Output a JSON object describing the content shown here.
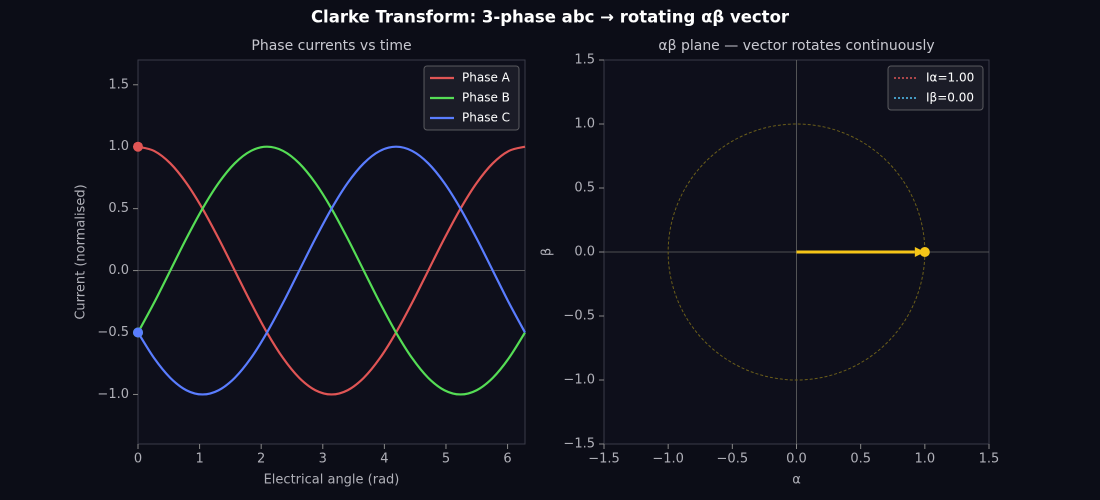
{
  "title": "Clarke Transform: 3-phase abc → rotating αβ vector",
  "chart_data": [
    {
      "type": "line",
      "title": "Phase currents vs time",
      "xlabel": "Electrical angle (rad)",
      "ylabel": "Current (normalised)",
      "x": [
        0,
        0.262,
        0.524,
        0.785,
        1.047,
        1.309,
        1.571,
        1.833,
        2.094,
        2.356,
        2.618,
        2.88,
        3.142,
        3.403,
        3.665,
        3.927,
        4.189,
        4.451,
        4.712,
        4.974,
        5.236,
        5.498,
        5.76,
        6.021,
        6.283
      ],
      "series": [
        {
          "name": "Phase A",
          "color": "#e05555",
          "values": [
            1,
            0.966,
            0.866,
            0.707,
            0.5,
            0.259,
            0,
            -0.259,
            -0.5,
            -0.707,
            -0.866,
            -0.966,
            -1,
            -0.966,
            -0.866,
            -0.707,
            -0.5,
            -0.259,
            0,
            0.259,
            0.5,
            0.707,
            0.866,
            0.966,
            1
          ]
        },
        {
          "name": "Phase B",
          "color": "#55dd55",
          "values": [
            -0.5,
            -0.259,
            0,
            0.259,
            0.5,
            0.707,
            0.866,
            0.966,
            1,
            0.966,
            0.866,
            0.707,
            0.5,
            0.259,
            0,
            -0.259,
            -0.5,
            -0.707,
            -0.866,
            -0.966,
            -1,
            -0.966,
            -0.866,
            -0.707,
            -0.5
          ]
        },
        {
          "name": "Phase C",
          "color": "#5a7dff",
          "values": [
            -0.5,
            -0.707,
            -0.866,
            -0.966,
            -1,
            -0.966,
            -0.866,
            -0.707,
            -0.5,
            -0.259,
            0,
            0.259,
            0.5,
            0.707,
            0.866,
            0.966,
            1,
            0.966,
            0.866,
            0.707,
            0.5,
            0.259,
            0,
            -0.259,
            -0.5
          ]
        }
      ],
      "xlim": [
        0,
        6.283
      ],
      "ylim": [
        -1.4,
        1.7
      ],
      "xticks": [
        0,
        1,
        2,
        3,
        4,
        5,
        6
      ],
      "yticks": [
        {
          "value": -1,
          "label": "−1.0"
        },
        {
          "value": -0.5,
          "label": "−0.5"
        },
        {
          "value": 0,
          "label": "0.0"
        },
        {
          "value": 0.5,
          "label": "0.5"
        },
        {
          "value": 1,
          "label": "1.0"
        },
        {
          "value": 1.5,
          "label": "1.5"
        }
      ],
      "zero_line": true,
      "legend": "upper right"
    },
    {
      "type": "vector",
      "title": "αβ plane — vector rotates continuously",
      "xlabel": "α",
      "ylabel": "β",
      "series": [
        {
          "name": "Iα=1.00",
          "color": "#e05555",
          "values": [
            1.0
          ]
        },
        {
          "name": "Iβ=0.00",
          "color": "#4fc3f7",
          "values": [
            0.0
          ]
        }
      ],
      "vector_color": "#f5c518",
      "circle_color": "#6b5e1a",
      "circle_radius": 1,
      "xlim": [
        -1.5,
        1.5
      ],
      "ylim": [
        -1.5,
        1.5
      ],
      "xticks": [
        {
          "value": -1.5,
          "label": "−1.5"
        },
        {
          "value": -1,
          "label": "−1.0"
        },
        {
          "value": -0.5,
          "label": "−0.5"
        },
        {
          "value": 0,
          "label": "0.0"
        },
        {
          "value": 0.5,
          "label": "0.5"
        },
        {
          "value": 1,
          "label": "1.0"
        },
        {
          "value": 1.5,
          "label": "1.5"
        }
      ],
      "yticks": [
        {
          "value": -1.5,
          "label": "−1.5"
        },
        {
          "value": -1,
          "label": "−1.0"
        },
        {
          "value": -0.5,
          "label": "−0.5"
        },
        {
          "value": 0,
          "label": "0.0"
        },
        {
          "value": 0.5,
          "label": "0.5"
        },
        {
          "value": 1,
          "label": "1.0"
        },
        {
          "value": 1.5,
          "label": "1.5"
        }
      ],
      "zero_line": true,
      "legend": "upper right"
    }
  ]
}
